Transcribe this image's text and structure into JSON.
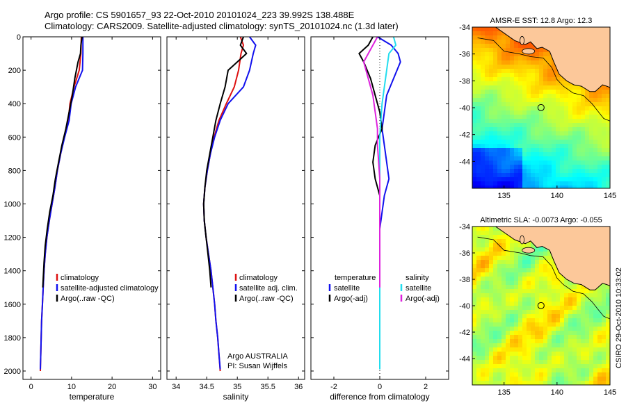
{
  "header": {
    "line1": "Argo profile: CS 5901657_93 22-Oct-2010 20101024_223 39.992S 138.488E",
    "line2": "Climatology: CARS2009. Satellite-adjusted climatology: synTS_20101024.nc (1.3d later)"
  },
  "credit": {
    "agency_line1": "Argo AUSTRALIA",
    "agency_line2": "PI: Susan Wijffels",
    "side_stamp": "CSIRO 29-Oct-2010 10:33:02"
  },
  "colors": {
    "climatology": "#dd1111",
    "satellite": "#1111ee",
    "argo": "#000000",
    "salinity_satellite": "#22ddee",
    "salinity_argo": "#dd22dd",
    "land": "#fcc89a",
    "frame": "#000000"
  },
  "chart_data": [
    {
      "id": "temperature",
      "type": "line",
      "xlabel": "temperature",
      "ylabel": "",
      "xlim": [
        -2,
        32
      ],
      "ylim": [
        2050,
        0
      ],
      "y_reversed": true,
      "xticks": [
        "0",
        "10",
        "20",
        "30"
      ],
      "xtick_values": [
        0,
        10,
        20,
        30
      ],
      "yticks": [
        "0",
        "200",
        "400",
        "600",
        "800",
        "1000",
        "1200",
        "1400",
        "1600",
        "1800",
        "2000"
      ],
      "ytick_values": [
        0,
        200,
        400,
        600,
        800,
        1000,
        1200,
        1400,
        1600,
        1800,
        2000
      ],
      "series": [
        {
          "name": "climatology",
          "color": "#dd1111",
          "points": [
            [
              12.4,
              0
            ],
            [
              12.3,
              100
            ],
            [
              11.9,
              200
            ],
            [
              10.6,
              300
            ],
            [
              9.6,
              400
            ],
            [
              9.2,
              500
            ],
            [
              8.2,
              600
            ],
            [
              7.3,
              700
            ],
            [
              6.5,
              800
            ],
            [
              5.9,
              900
            ],
            [
              5.2,
              1000
            ],
            [
              4.5,
              1100
            ],
            [
              3.9,
              1200
            ],
            [
              3.5,
              1300
            ],
            [
              3.2,
              1400
            ],
            [
              3.0,
              1500
            ],
            [
              2.8,
              1600
            ],
            [
              2.6,
              1700
            ],
            [
              2.5,
              1800
            ],
            [
              2.4,
              1900
            ],
            [
              2.3,
              2000
            ]
          ]
        },
        {
          "name": "satellite-adjusted climatology",
          "color": "#1111ee",
          "points": [
            [
              12.8,
              0
            ],
            [
              12.8,
              100
            ],
            [
              12.7,
              200
            ],
            [
              11.0,
              300
            ],
            [
              9.9,
              400
            ],
            [
              9.4,
              500
            ],
            [
              8.3,
              600
            ],
            [
              7.3,
              700
            ],
            [
              6.5,
              800
            ],
            [
              5.9,
              900
            ],
            [
              5.2,
              1000
            ],
            [
              4.5,
              1100
            ],
            [
              3.9,
              1200
            ],
            [
              3.5,
              1300
            ],
            [
              3.2,
              1400
            ],
            [
              3.0,
              1500
            ],
            [
              2.8,
              1600
            ],
            [
              2.6,
              1700
            ],
            [
              2.5,
              1800
            ],
            [
              2.4,
              1900
            ],
            [
              2.3,
              1990
            ]
          ]
        },
        {
          "name": "Argo(..raw -QC)",
          "color": "#000000",
          "points": [
            [
              12.6,
              0
            ],
            [
              12.3,
              50
            ],
            [
              12.2,
              100
            ],
            [
              11.6,
              150
            ],
            [
              10.8,
              250
            ],
            [
              10.2,
              350
            ],
            [
              9.4,
              450
            ],
            [
              8.6,
              550
            ],
            [
              7.6,
              650
            ],
            [
              6.8,
              750
            ],
            [
              6.0,
              850
            ],
            [
              5.4,
              950
            ],
            [
              4.6,
              1050
            ],
            [
              4.0,
              1150
            ],
            [
              3.5,
              1250
            ],
            [
              3.2,
              1350
            ],
            [
              3.0,
              1450
            ],
            [
              2.9,
              1500
            ]
          ]
        }
      ],
      "legend": [
        "climatology",
        "satellite-adjusted climatology",
        "Argo(..raw -QC)"
      ],
      "legend_position": "lower-right"
    },
    {
      "id": "salinity",
      "type": "line",
      "xlabel": "salinity",
      "ylabel": "",
      "xlim": [
        33.85,
        36.1
      ],
      "ylim": [
        2050,
        0
      ],
      "y_reversed": true,
      "xticks": [
        "34",
        "34.5",
        "35",
        "35.5",
        "36"
      ],
      "xtick_values": [
        34,
        34.5,
        35,
        35.5,
        36
      ],
      "series": [
        {
          "name": "climatology",
          "color": "#dd1111",
          "points": [
            [
              35.05,
              0
            ],
            [
              35.1,
              50
            ],
            [
              35.06,
              100
            ],
            [
              35.02,
              200
            ],
            [
              34.95,
              300
            ],
            [
              34.82,
              400
            ],
            [
              34.7,
              500
            ],
            [
              34.62,
              600
            ],
            [
              34.56,
              700
            ],
            [
              34.51,
              800
            ],
            [
              34.47,
              900
            ],
            [
              34.45,
              1000
            ],
            [
              34.46,
              1100
            ],
            [
              34.49,
              1200
            ],
            [
              34.53,
              1300
            ],
            [
              34.57,
              1400
            ],
            [
              34.6,
              1500
            ],
            [
              34.63,
              1600
            ],
            [
              34.65,
              1700
            ],
            [
              34.68,
              1800
            ],
            [
              34.7,
              1900
            ],
            [
              34.72,
              2000
            ]
          ]
        },
        {
          "name": "satellite adj. clim.",
          "color": "#1111ee",
          "points": [
            [
              35.2,
              0
            ],
            [
              35.3,
              50
            ],
            [
              35.26,
              100
            ],
            [
              35.2,
              200
            ],
            [
              35.1,
              300
            ],
            [
              34.85,
              400
            ],
            [
              34.72,
              500
            ],
            [
              34.63,
              600
            ],
            [
              34.56,
              700
            ],
            [
              34.51,
              800
            ],
            [
              34.47,
              900
            ],
            [
              34.45,
              1000
            ],
            [
              34.46,
              1100
            ],
            [
              34.49,
              1200
            ],
            [
              34.53,
              1300
            ],
            [
              34.57,
              1400
            ],
            [
              34.6,
              1500
            ],
            [
              34.63,
              1600
            ],
            [
              34.65,
              1700
            ],
            [
              34.68,
              1800
            ],
            [
              34.7,
              1900
            ],
            [
              34.72,
              1990
            ]
          ]
        },
        {
          "name": "Argo(..raw -QC)",
          "color": "#000000",
          "points": [
            [
              35.1,
              0
            ],
            [
              35.05,
              50
            ],
            [
              35.15,
              100
            ],
            [
              35.0,
              150
            ],
            [
              34.85,
              200
            ],
            [
              34.8,
              300
            ],
            [
              34.72,
              400
            ],
            [
              34.65,
              500
            ],
            [
              34.6,
              600
            ],
            [
              34.55,
              700
            ],
            [
              34.5,
              800
            ],
            [
              34.47,
              900
            ],
            [
              34.45,
              1000
            ],
            [
              34.46,
              1100
            ],
            [
              34.49,
              1200
            ],
            [
              34.52,
              1300
            ],
            [
              34.55,
              1400
            ],
            [
              34.57,
              1500
            ]
          ]
        }
      ],
      "legend": [
        "climatology",
        "satellite adj. clim.",
        "Argo(..raw -QC)"
      ],
      "legend_position": "lower-right"
    },
    {
      "id": "difference",
      "type": "line",
      "xlabel": "difference from climatology",
      "ylabel": "",
      "xlim": [
        -3,
        3
      ],
      "ylim": [
        2050,
        0
      ],
      "y_reversed": true,
      "xticks": [
        "-2",
        "0",
        "2"
      ],
      "xtick_values": [
        -2,
        0,
        2
      ],
      "zero_line": "dotted",
      "series": [
        {
          "name": "temperature satellite",
          "color": "#1111ee",
          "points": [
            [
              -0.1,
              0
            ],
            [
              0.5,
              50
            ],
            [
              0.8,
              100
            ],
            [
              0.9,
              150
            ],
            [
              0.6,
              250
            ],
            [
              0.3,
              350
            ],
            [
              0.2,
              450
            ],
            [
              0.1,
              550
            ],
            [
              0.2,
              650
            ],
            [
              0.3,
              750
            ],
            [
              0.4,
              850
            ],
            [
              0.2,
              950
            ],
            [
              0.1,
              1050
            ],
            [
              0.0,
              1150
            ]
          ]
        },
        {
          "name": "temperature Argo(-adj)",
          "color": "#000000",
          "points": [
            [
              -0.3,
              0
            ],
            [
              -0.5,
              50
            ],
            [
              -0.9,
              100
            ],
            [
              -0.7,
              150
            ],
            [
              -0.4,
              250
            ],
            [
              -0.2,
              350
            ],
            [
              0.0,
              450
            ],
            [
              0.1,
              550
            ],
            [
              -0.2,
              650
            ],
            [
              -0.3,
              750
            ],
            [
              -0.2,
              850
            ],
            [
              0.0,
              950
            ],
            [
              0.0,
              1050
            ],
            [
              0.0,
              1150
            ],
            [
              0.0,
              1250
            ],
            [
              0.0,
              1350
            ],
            [
              0.0,
              1450
            ],
            [
              0.0,
              1500
            ]
          ]
        },
        {
          "name": "salinity satellite",
          "color": "#22ddee",
          "points": [
            [
              0.6,
              0
            ],
            [
              0.7,
              50
            ],
            [
              0.4,
              100
            ],
            [
              0.3,
              200
            ],
            [
              0.2,
              300
            ],
            [
              0.1,
              400
            ],
            [
              0.05,
              500
            ],
            [
              0.0,
              600
            ],
            [
              0.0,
              800
            ],
            [
              0.0,
              1000
            ],
            [
              0.0,
              1200
            ],
            [
              0.0,
              1400
            ],
            [
              0.0,
              1600
            ],
            [
              0.0,
              1800
            ],
            [
              0.0,
              1990
            ]
          ]
        },
        {
          "name": "salinity Argo(-adj)",
          "color": "#dd22dd",
          "points": [
            [
              -0.1,
              0
            ],
            [
              -0.3,
              50
            ],
            [
              -0.7,
              150
            ],
            [
              -0.5,
              250
            ],
            [
              -0.3,
              350
            ],
            [
              -0.2,
              450
            ],
            [
              -0.1,
              550
            ],
            [
              -0.1,
              650
            ],
            [
              -0.05,
              750
            ],
            [
              0.0,
              850
            ],
            [
              0.0,
              1000
            ],
            [
              0.0,
              1200
            ],
            [
              0.0,
              1400
            ],
            [
              0.0,
              1500
            ]
          ]
        }
      ],
      "legend_headers": [
        "temperature",
        "salinity"
      ],
      "legend": [
        "satellite",
        "Argo(-adj)",
        "satellite",
        "Argo(-adj)"
      ],
      "legend_position": "lower-center"
    },
    {
      "id": "sst-map",
      "type": "heatmap",
      "title": "AMSR-E SST: 12.8 Argo: 12.3",
      "xlim": [
        132,
        145
      ],
      "ylim": [
        -46,
        -34
      ],
      "xticks": [
        "135",
        "140",
        "145"
      ],
      "xtick_values": [
        135,
        140,
        145
      ],
      "yticks": [
        "-34",
        "-36",
        "-38",
        "-40",
        "-42",
        "-44"
      ],
      "ytick_values": [
        -34,
        -36,
        -38,
        -40,
        -42,
        -44
      ],
      "float_marker": [
        138.488,
        -39.992
      ],
      "colormap": "jet"
    },
    {
      "id": "sla-map",
      "type": "heatmap",
      "title": "Altimetric SLA: -0.0073 Argo: -0.055",
      "xlim": [
        132,
        145
      ],
      "ylim": [
        -46,
        -34
      ],
      "xticks": [
        "135",
        "140",
        "145"
      ],
      "xtick_values": [
        135,
        140,
        145
      ],
      "yticks": [
        "-34",
        "-36",
        "-38",
        "-40",
        "-42",
        "-44"
      ],
      "ytick_values": [
        -34,
        -36,
        -38,
        -40,
        -42,
        -44
      ],
      "float_marker": [
        138.488,
        -39.992
      ],
      "colormap": "jet"
    }
  ]
}
